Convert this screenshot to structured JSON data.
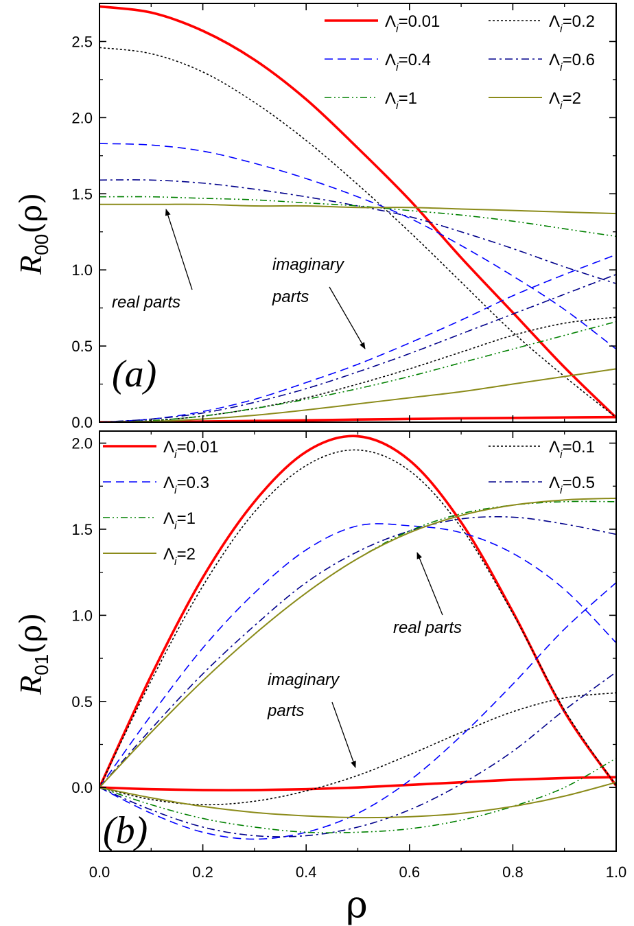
{
  "chart_data": [
    {
      "type": "line",
      "panel_label": "(a)",
      "ylabel": {
        "main": "R",
        "sub": "00",
        "arg": "(ρ)"
      },
      "xlim": [
        0,
        1
      ],
      "ylim": [
        0,
        2.75
      ],
      "xticks": [
        "0.0",
        "0.2",
        "0.4",
        "0.6",
        "0.8",
        "1.0"
      ],
      "xtick_values": [
        0,
        0.2,
        0.4,
        0.6,
        0.8,
        1.0
      ],
      "yticks": [
        "0.0",
        "0.5",
        "1.0",
        "1.5",
        "2.0",
        "2.5"
      ],
      "ytick_values": [
        0,
        0.5,
        1.0,
        1.5,
        2.0,
        2.5
      ],
      "legend_position": "top-right",
      "legend_columns": 2,
      "annotations": [
        {
          "text": "real parts",
          "lines": [
            "real parts"
          ]
        },
        {
          "text": "imaginary parts",
          "lines": [
            "imaginary",
            "parts"
          ]
        }
      ],
      "x": [
        0,
        0.1,
        0.2,
        0.3,
        0.4,
        0.5,
        0.6,
        0.7,
        0.8,
        0.9,
        1.0
      ],
      "series": [
        {
          "name": "Λi=0.01",
          "legend_value": "=0.01",
          "style": "red-solid",
          "color": "#ff0000",
          "real": [
            2.73,
            2.69,
            2.57,
            2.38,
            2.12,
            1.8,
            1.46,
            1.08,
            0.72,
            0.36,
            0.03
          ],
          "imag": [
            0,
            0.001,
            0.004,
            0.008,
            0.012,
            0.017,
            0.021,
            0.025,
            0.028,
            0.031,
            0.033
          ]
        },
        {
          "name": "Λi=0.2",
          "legend_value": "=0.2",
          "style": "black-dot",
          "color": "#000000",
          "real": [
            2.46,
            2.42,
            2.3,
            2.1,
            1.85,
            1.56,
            1.25,
            0.92,
            0.59,
            0.3,
            0.03
          ],
          "imag": [
            0,
            0.01,
            0.04,
            0.09,
            0.16,
            0.25,
            0.35,
            0.46,
            0.57,
            0.65,
            0.69
          ]
        },
        {
          "name": "Λi=0.4",
          "legend_value": "=0.4",
          "style": "blue-dash",
          "color": "#0000ff",
          "real": [
            1.83,
            1.82,
            1.78,
            1.7,
            1.6,
            1.48,
            1.34,
            1.16,
            0.96,
            0.74,
            0.48
          ],
          "imag": [
            0,
            0.02,
            0.07,
            0.15,
            0.26,
            0.38,
            0.52,
            0.67,
            0.83,
            0.97,
            1.1
          ]
        },
        {
          "name": "Λi=0.6",
          "legend_value": "=0.6",
          "style": "navy-dashdot",
          "color": "#00008b",
          "real": [
            1.59,
            1.59,
            1.57,
            1.53,
            1.48,
            1.42,
            1.35,
            1.25,
            1.14,
            1.02,
            0.91
          ],
          "imag": [
            0,
            0.02,
            0.06,
            0.13,
            0.22,
            0.33,
            0.45,
            0.58,
            0.71,
            0.84,
            0.97
          ]
        },
        {
          "name": "Λi=1",
          "legend_value": "=1",
          "style": "green-dashdotdot",
          "color": "#008000",
          "real": [
            1.48,
            1.48,
            1.47,
            1.46,
            1.44,
            1.42,
            1.39,
            1.36,
            1.32,
            1.27,
            1.22
          ],
          "imag": [
            0,
            0.01,
            0.04,
            0.09,
            0.15,
            0.22,
            0.3,
            0.39,
            0.48,
            0.57,
            0.66
          ]
        },
        {
          "name": "Λi=2",
          "legend_value": "=2",
          "style": "olive-solid",
          "color": "#8b8b1a",
          "real": [
            1.43,
            1.43,
            1.43,
            1.42,
            1.42,
            1.41,
            1.41,
            1.4,
            1.39,
            1.38,
            1.37
          ],
          "imag": [
            0,
            0.005,
            0.02,
            0.045,
            0.08,
            0.12,
            0.16,
            0.2,
            0.25,
            0.3,
            0.35
          ]
        }
      ]
    },
    {
      "type": "line",
      "panel_label": "(b)",
      "ylabel": {
        "main": "R",
        "sub": "01",
        "arg": "(ρ)"
      },
      "xlabel": "ρ",
      "xlim": [
        0,
        1
      ],
      "ylim": [
        -0.37,
        2.07
      ],
      "xticks": [
        "0.0",
        "0.2",
        "0.4",
        "0.6",
        "0.8",
        "1.0"
      ],
      "xtick_values": [
        0,
        0.2,
        0.4,
        0.6,
        0.8,
        1.0
      ],
      "yticks": [
        "0.0",
        "0.5",
        "1.0",
        "1.5",
        "2.0"
      ],
      "ytick_values": [
        0,
        0.5,
        1.0,
        1.5,
        2.0
      ],
      "legend_position": "top",
      "legend_columns": 2,
      "annotations": [
        {
          "text": "real parts",
          "lines": [
            "real parts"
          ]
        },
        {
          "text": "imaginary parts",
          "lines": [
            "imaginary",
            "parts"
          ]
        }
      ],
      "x": [
        0,
        0.1,
        0.2,
        0.3,
        0.4,
        0.5,
        0.6,
        0.7,
        0.8,
        0.9,
        1.0
      ],
      "series": [
        {
          "name": "Λi=0.01",
          "legend_value": "=0.01",
          "style": "red-solid",
          "color": "#ff0000",
          "real": [
            0,
            0.65,
            1.22,
            1.66,
            1.95,
            2.04,
            1.9,
            1.54,
            1.02,
            0.44,
            0.01
          ],
          "imag": [
            0,
            -0.01,
            -0.015,
            -0.015,
            -0.01,
            0.0,
            0.015,
            0.03,
            0.045,
            0.055,
            0.06
          ]
        },
        {
          "name": "Λi=0.1",
          "legend_value": "=0.1",
          "style": "black-dot",
          "color": "#000000",
          "real": [
            0,
            0.62,
            1.17,
            1.6,
            1.87,
            1.96,
            1.84,
            1.51,
            1.01,
            0.45,
            0.01
          ],
          "imag": [
            0,
            -0.07,
            -0.1,
            -0.08,
            -0.02,
            0.07,
            0.19,
            0.32,
            0.44,
            0.52,
            0.55
          ]
        },
        {
          "name": "Λi=0.3",
          "legend_value": "=0.3",
          "style": "blue-dash",
          "color": "#0000ff",
          "real": [
            0,
            0.42,
            0.81,
            1.13,
            1.38,
            1.52,
            1.52,
            1.48,
            1.36,
            1.15,
            0.84
          ],
          "imag": [
            0,
            -0.15,
            -0.26,
            -0.3,
            -0.26,
            -0.15,
            0.04,
            0.3,
            0.6,
            0.92,
            1.19
          ]
        },
        {
          "name": "Λi=0.5",
          "legend_value": "=0.5",
          "style": "navy-dashdot",
          "color": "#00008b",
          "real": [
            0,
            0.34,
            0.66,
            0.94,
            1.19,
            1.37,
            1.49,
            1.56,
            1.57,
            1.53,
            1.47
          ],
          "imag": [
            0,
            -0.13,
            -0.23,
            -0.28,
            -0.28,
            -0.23,
            -0.13,
            0.02,
            0.21,
            0.45,
            0.67
          ]
        },
        {
          "name": "Λi=1",
          "legend_value": "=1",
          "style": "green-dashdotdot",
          "color": "#008000",
          "real": [
            0,
            0.32,
            0.62,
            0.89,
            1.13,
            1.33,
            1.49,
            1.59,
            1.64,
            1.66,
            1.66
          ],
          "imag": [
            0,
            -0.1,
            -0.18,
            -0.23,
            -0.26,
            -0.26,
            -0.24,
            -0.19,
            -0.11,
            0.0,
            0.17
          ]
        },
        {
          "name": "Λi=2",
          "legend_value": "=2",
          "style": "olive-solid",
          "color": "#8b8b1a",
          "real": [
            0,
            0.32,
            0.62,
            0.89,
            1.13,
            1.33,
            1.48,
            1.58,
            1.64,
            1.67,
            1.68
          ],
          "imag": [
            0,
            -0.06,
            -0.11,
            -0.145,
            -0.165,
            -0.175,
            -0.17,
            -0.15,
            -0.11,
            -0.05,
            0.03
          ]
        }
      ]
    }
  ]
}
